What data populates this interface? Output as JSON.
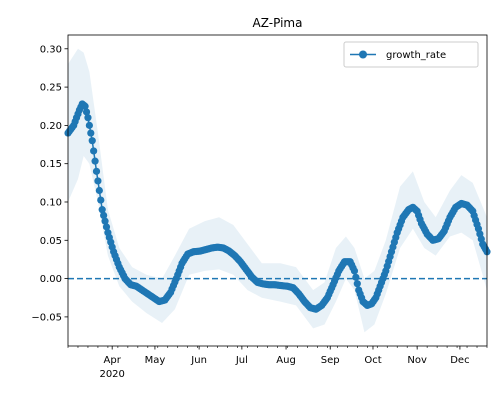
{
  "chart_data": {
    "type": "line",
    "title": "AZ-Pima",
    "xlabel": "",
    "ylabel": "",
    "x_range": [
      "2020-03-01",
      "2020-12-20"
    ],
    "ylim": [
      -0.088,
      0.318
    ],
    "y_ticks": [
      -0.05,
      0.0,
      0.05,
      0.1,
      0.15,
      0.2,
      0.25,
      0.3
    ],
    "y_tick_labels": [
      "−0.05",
      "0.00",
      "0.05",
      "0.10",
      "0.15",
      "0.20",
      "0.25",
      "0.30"
    ],
    "x_major_ticks": [
      {
        "date": "2020-04-01",
        "label": "Apr",
        "sublabel": "2020"
      },
      {
        "date": "2020-05-01",
        "label": "May",
        "sublabel": ""
      },
      {
        "date": "2020-06-01",
        "label": "Jun",
        "sublabel": ""
      },
      {
        "date": "2020-07-01",
        "label": "Jul",
        "sublabel": ""
      },
      {
        "date": "2020-08-01",
        "label": "Aug",
        "sublabel": ""
      },
      {
        "date": "2020-09-01",
        "label": "Sep",
        "sublabel": ""
      },
      {
        "date": "2020-10-01",
        "label": "Oct",
        "sublabel": ""
      },
      {
        "date": "2020-11-01",
        "label": "Nov",
        "sublabel": ""
      },
      {
        "date": "2020-12-01",
        "label": "Dec",
        "sublabel": ""
      }
    ],
    "grid": false,
    "legend": {
      "placement": "top-right",
      "entries": [
        "growth_rate"
      ]
    },
    "reference_line": {
      "y": 0.0,
      "style": "dashed"
    },
    "colors": {
      "series": "#1f77b4",
      "band": "#1f77b4"
    },
    "series": [
      {
        "name": "growth_rate",
        "marker": "circle",
        "points": [
          [
            "2020-03-01",
            0.19
          ],
          [
            "2020-03-05",
            0.2
          ],
          [
            "2020-03-09",
            0.22
          ],
          [
            "2020-03-11",
            0.228
          ],
          [
            "2020-03-13",
            0.225
          ],
          [
            "2020-03-15",
            0.21
          ],
          [
            "2020-03-18",
            0.18
          ],
          [
            "2020-03-21",
            0.14
          ],
          [
            "2020-03-25",
            0.09
          ],
          [
            "2020-03-29",
            0.06
          ],
          [
            "2020-04-02",
            0.035
          ],
          [
            "2020-04-06",
            0.015
          ],
          [
            "2020-04-10",
            0.0
          ],
          [
            "2020-04-14",
            -0.008
          ],
          [
            "2020-04-18",
            -0.01
          ],
          [
            "2020-04-22",
            -0.015
          ],
          [
            "2020-04-26",
            -0.02
          ],
          [
            "2020-04-30",
            -0.025
          ],
          [
            "2020-05-04",
            -0.03
          ],
          [
            "2020-05-08",
            -0.028
          ],
          [
            "2020-05-12",
            -0.018
          ],
          [
            "2020-05-16",
            0.0
          ],
          [
            "2020-05-20",
            0.02
          ],
          [
            "2020-05-24",
            0.032
          ],
          [
            "2020-05-28",
            0.035
          ],
          [
            "2020-06-02",
            0.036
          ],
          [
            "2020-06-06",
            0.038
          ],
          [
            "2020-06-10",
            0.04
          ],
          [
            "2020-06-14",
            0.041
          ],
          [
            "2020-06-18",
            0.04
          ],
          [
            "2020-06-22",
            0.036
          ],
          [
            "2020-06-26",
            0.03
          ],
          [
            "2020-06-30",
            0.022
          ],
          [
            "2020-07-04",
            0.012
          ],
          [
            "2020-07-08",
            0.002
          ],
          [
            "2020-07-12",
            -0.005
          ],
          [
            "2020-07-16",
            -0.007
          ],
          [
            "2020-07-20",
            -0.008
          ],
          [
            "2020-07-24",
            -0.008
          ],
          [
            "2020-07-28",
            -0.009
          ],
          [
            "2020-08-02",
            -0.01
          ],
          [
            "2020-08-06",
            -0.012
          ],
          [
            "2020-08-10",
            -0.02
          ],
          [
            "2020-08-14",
            -0.03
          ],
          [
            "2020-08-18",
            -0.038
          ],
          [
            "2020-08-22",
            -0.04
          ],
          [
            "2020-08-26",
            -0.035
          ],
          [
            "2020-08-30",
            -0.025
          ],
          [
            "2020-09-03",
            -0.008
          ],
          [
            "2020-09-07",
            0.01
          ],
          [
            "2020-09-11",
            0.022
          ],
          [
            "2020-09-15",
            0.022
          ],
          [
            "2020-09-18",
            0.01
          ],
          [
            "2020-09-21",
            -0.015
          ],
          [
            "2020-09-24",
            -0.03
          ],
          [
            "2020-09-27",
            -0.035
          ],
          [
            "2020-09-30",
            -0.033
          ],
          [
            "2020-10-03",
            -0.025
          ],
          [
            "2020-10-06",
            -0.01
          ],
          [
            "2020-10-10",
            0.01
          ],
          [
            "2020-10-14",
            0.035
          ],
          [
            "2020-10-18",
            0.06
          ],
          [
            "2020-10-22",
            0.08
          ],
          [
            "2020-10-26",
            0.09
          ],
          [
            "2020-10-29",
            0.093
          ],
          [
            "2020-11-01",
            0.088
          ],
          [
            "2020-11-04",
            0.072
          ],
          [
            "2020-11-08",
            0.058
          ],
          [
            "2020-11-12",
            0.05
          ],
          [
            "2020-11-16",
            0.052
          ],
          [
            "2020-11-20",
            0.062
          ],
          [
            "2020-11-24",
            0.08
          ],
          [
            "2020-11-28",
            0.093
          ],
          [
            "2020-12-02",
            0.098
          ],
          [
            "2020-12-06",
            0.096
          ],
          [
            "2020-12-10",
            0.088
          ],
          [
            "2020-12-14",
            0.065
          ],
          [
            "2020-12-17",
            0.045
          ],
          [
            "2020-12-20",
            0.035
          ]
        ],
        "band": [
          [
            "2020-03-01",
            0.1,
            0.28
          ],
          [
            "2020-03-08",
            0.13,
            0.3
          ],
          [
            "2020-03-12",
            0.16,
            0.295
          ],
          [
            "2020-03-16",
            0.15,
            0.27
          ],
          [
            "2020-03-22",
            0.1,
            0.19
          ],
          [
            "2020-03-29",
            0.03,
            0.09
          ],
          [
            "2020-04-06",
            -0.01,
            0.04
          ],
          [
            "2020-04-15",
            -0.03,
            0.015
          ],
          [
            "2020-04-25",
            -0.045,
            0.005
          ],
          [
            "2020-05-06",
            -0.058,
            0.0
          ],
          [
            "2020-05-15",
            -0.04,
            0.03
          ],
          [
            "2020-05-25",
            0.005,
            0.065
          ],
          [
            "2020-06-05",
            0.01,
            0.075
          ],
          [
            "2020-06-15",
            0.012,
            0.08
          ],
          [
            "2020-06-25",
            0.005,
            0.07
          ],
          [
            "2020-07-05",
            -0.015,
            0.045
          ],
          [
            "2020-07-15",
            -0.025,
            0.02
          ],
          [
            "2020-07-28",
            -0.03,
            0.02
          ],
          [
            "2020-08-08",
            -0.035,
            0.015
          ],
          [
            "2020-08-20",
            -0.065,
            -0.015
          ],
          [
            "2020-08-28",
            -0.06,
            -0.005
          ],
          [
            "2020-09-05",
            -0.03,
            0.04
          ],
          [
            "2020-09-12",
            0.0,
            0.055
          ],
          [
            "2020-09-18",
            -0.015,
            0.04
          ],
          [
            "2020-09-25",
            -0.07,
            0.0
          ],
          [
            "2020-10-02",
            -0.06,
            0.01
          ],
          [
            "2020-10-10",
            -0.02,
            0.05
          ],
          [
            "2020-10-20",
            0.04,
            0.12
          ],
          [
            "2020-10-29",
            0.065,
            0.14
          ],
          [
            "2020-11-06",
            0.04,
            0.1
          ],
          [
            "2020-11-14",
            0.03,
            0.08
          ],
          [
            "2020-11-24",
            0.055,
            0.115
          ],
          [
            "2020-12-02",
            0.06,
            0.135
          ],
          [
            "2020-12-10",
            0.05,
            0.125
          ],
          [
            "2020-12-20",
            -0.015,
            0.08
          ]
        ]
      }
    ]
  }
}
